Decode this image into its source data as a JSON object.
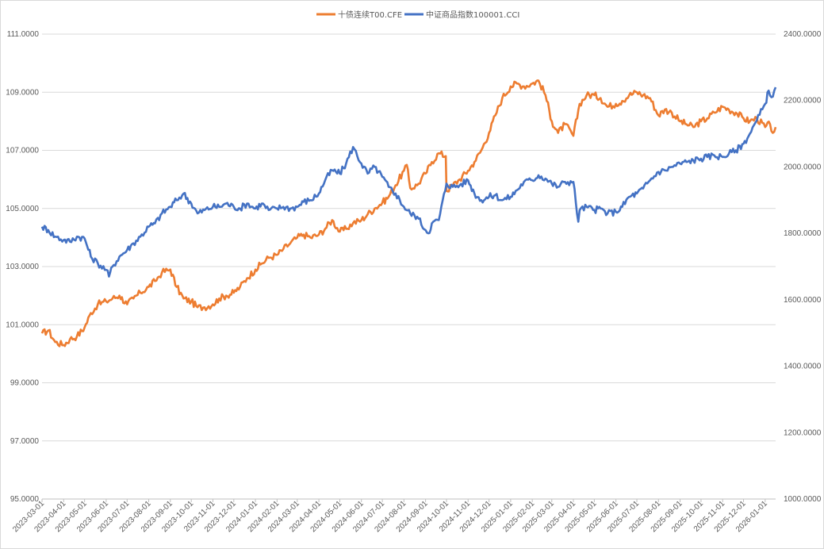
{
  "chart_data": {
    "type": "line",
    "title": "",
    "xlabel": "",
    "ylabel": "",
    "y2label": "",
    "grid": true,
    "legend_position": "top-center",
    "x_range": [
      "2023-03-01",
      "2026-01-16"
    ],
    "ylim": [
      95,
      111
    ],
    "y2lim": [
      1000,
      2400
    ],
    "x_ticks": [
      "2023-03-01",
      "2023-04-01",
      "2023-05-01",
      "2023-06-01",
      "2023-07-01",
      "2023-08-01",
      "2023-09-01",
      "2023-10-01",
      "2023-11-01",
      "2023-12-01",
      "2024-01-01",
      "2024-02-01",
      "2024-03-01",
      "2024-04-01",
      "2024-05-01",
      "2024-06-01",
      "2024-07-01",
      "2024-08-01",
      "2024-09-01",
      "2024-10-01",
      "2024-11-01",
      "2024-12-01",
      "2025-01-01",
      "2025-02-01",
      "2025-03-01",
      "2025-04-01",
      "2025-05-01",
      "2025-06-01",
      "2025-07-01",
      "2025-08-01",
      "2025-09-01",
      "2025-10-01",
      "2025-11-01",
      "2025-12-01",
      "2026-01-01"
    ],
    "y_ticks": [
      "95.0000",
      "97.0000",
      "99.0000",
      "101.0000",
      "103.0000",
      "105.0000",
      "107.0000",
      "109.0000",
      "111.0000"
    ],
    "y2_ticks": [
      "1000.0000",
      "1200.0000",
      "1400.0000",
      "1600.0000",
      "1800.0000",
      "2000.0000",
      "2200.0000",
      "2400.0000"
    ],
    "series": [
      {
        "name": "十债连续T00.CFE",
        "axis": "left",
        "color": "#ED7D31",
        "points": [
          [
            "2023-03-01",
            100.7
          ],
          [
            "2023-03-10",
            100.8
          ],
          [
            "2023-03-20",
            100.4
          ],
          [
            "2023-04-01",
            100.3
          ],
          [
            "2023-04-10",
            100.5
          ],
          [
            "2023-04-20",
            100.6
          ],
          [
            "2023-05-01",
            100.9
          ],
          [
            "2023-05-10",
            101.4
          ],
          [
            "2023-05-20",
            101.7
          ],
          [
            "2023-06-01",
            101.8
          ],
          [
            "2023-06-10",
            101.9
          ],
          [
            "2023-06-20",
            102.0
          ],
          [
            "2023-07-01",
            101.7
          ],
          [
            "2023-07-10",
            101.9
          ],
          [
            "2023-07-20",
            102.1
          ],
          [
            "2023-08-01",
            102.3
          ],
          [
            "2023-08-10",
            102.5
          ],
          [
            "2023-08-20",
            102.8
          ],
          [
            "2023-09-01",
            102.9
          ],
          [
            "2023-09-10",
            102.3
          ],
          [
            "2023-09-20",
            101.9
          ],
          [
            "2023-10-01",
            101.8
          ],
          [
            "2023-10-10",
            101.6
          ],
          [
            "2023-10-20",
            101.6
          ],
          [
            "2023-11-01",
            101.7
          ],
          [
            "2023-11-10",
            101.9
          ],
          [
            "2023-11-20",
            102.0
          ],
          [
            "2023-12-01",
            102.1
          ],
          [
            "2023-12-10",
            102.3
          ],
          [
            "2023-12-20",
            102.6
          ],
          [
            "2024-01-01",
            102.9
          ],
          [
            "2024-01-10",
            103.1
          ],
          [
            "2024-01-20",
            103.3
          ],
          [
            "2024-02-01",
            103.4
          ],
          [
            "2024-02-10",
            103.6
          ],
          [
            "2024-02-20",
            103.8
          ],
          [
            "2024-03-01",
            104.0
          ],
          [
            "2024-03-10",
            104.1
          ],
          [
            "2024-03-20",
            104.0
          ],
          [
            "2024-04-01",
            104.1
          ],
          [
            "2024-04-10",
            104.3
          ],
          [
            "2024-04-20",
            104.6
          ],
          [
            "2024-05-01",
            104.2
          ],
          [
            "2024-05-10",
            104.3
          ],
          [
            "2024-05-20",
            104.5
          ],
          [
            "2024-06-01",
            104.6
          ],
          [
            "2024-06-10",
            104.8
          ],
          [
            "2024-06-20",
            105.0
          ],
          [
            "2024-07-01",
            105.2
          ],
          [
            "2024-07-10",
            105.4
          ],
          [
            "2024-07-20",
            105.8
          ],
          [
            "2024-08-01",
            106.3
          ],
          [
            "2024-08-05",
            106.5
          ],
          [
            "2024-08-10",
            105.7
          ],
          [
            "2024-08-20",
            105.8
          ],
          [
            "2024-09-01",
            106.2
          ],
          [
            "2024-09-10",
            106.6
          ],
          [
            "2024-09-20",
            106.9
          ],
          [
            "2024-09-30",
            106.8
          ],
          [
            "2024-10-01",
            105.6
          ],
          [
            "2024-10-10",
            105.8
          ],
          [
            "2024-10-20",
            106.0
          ],
          [
            "2024-11-01",
            106.3
          ],
          [
            "2024-11-10",
            106.6
          ],
          [
            "2024-11-20",
            107.0
          ],
          [
            "2024-12-01",
            107.6
          ],
          [
            "2024-12-10",
            108.2
          ],
          [
            "2024-12-20",
            108.8
          ],
          [
            "2025-01-01",
            109.2
          ],
          [
            "2025-01-10",
            109.3
          ],
          [
            "2025-01-20",
            109.2
          ],
          [
            "2025-02-01",
            109.3
          ],
          [
            "2025-02-10",
            109.4
          ],
          [
            "2025-02-20",
            108.9
          ],
          [
            "2025-03-01",
            108.0
          ],
          [
            "2025-03-10",
            107.6
          ],
          [
            "2025-03-20",
            107.9
          ],
          [
            "2025-04-01",
            107.5
          ],
          [
            "2025-04-10",
            108.6
          ],
          [
            "2025-04-20",
            108.9
          ],
          [
            "2025-05-01",
            108.9
          ],
          [
            "2025-05-10",
            108.8
          ],
          [
            "2025-05-20",
            108.5
          ],
          [
            "2025-06-01",
            108.6
          ],
          [
            "2025-06-10",
            108.7
          ],
          [
            "2025-06-20",
            108.9
          ],
          [
            "2025-07-01",
            109.0
          ],
          [
            "2025-07-10",
            108.9
          ],
          [
            "2025-07-20",
            108.8
          ],
          [
            "2025-08-01",
            108.2
          ],
          [
            "2025-08-10",
            108.4
          ],
          [
            "2025-08-20",
            108.3
          ],
          [
            "2025-09-01",
            108.0
          ],
          [
            "2025-09-10",
            107.9
          ],
          [
            "2025-09-20",
            107.8
          ],
          [
            "2025-10-01",
            108.0
          ],
          [
            "2025-10-10",
            108.1
          ],
          [
            "2025-10-20",
            108.3
          ],
          [
            "2025-11-01",
            108.5
          ],
          [
            "2025-11-10",
            108.4
          ],
          [
            "2025-11-20",
            108.3
          ],
          [
            "2025-12-01",
            108.1
          ],
          [
            "2025-12-10",
            108.0
          ],
          [
            "2025-12-20",
            108.1
          ],
          [
            "2026-01-01",
            107.8
          ],
          [
            "2026-01-08",
            107.9
          ],
          [
            "2026-01-12",
            107.6
          ],
          [
            "2026-01-16",
            107.8
          ]
        ]
      },
      {
        "name": "中证商品指数100001.CCI",
        "axis": "right",
        "color": "#4472C4",
        "points": [
          [
            "2023-03-01",
            1820
          ],
          [
            "2023-03-10",
            1810
          ],
          [
            "2023-03-20",
            1790
          ],
          [
            "2023-04-01",
            1780
          ],
          [
            "2023-04-10",
            1775
          ],
          [
            "2023-04-20",
            1790
          ],
          [
            "2023-05-01",
            1785
          ],
          [
            "2023-05-10",
            1730
          ],
          [
            "2023-05-20",
            1710
          ],
          [
            "2023-06-01",
            1690
          ],
          [
            "2023-06-05",
            1670
          ],
          [
            "2023-06-10",
            1700
          ],
          [
            "2023-06-20",
            1730
          ],
          [
            "2023-07-01",
            1750
          ],
          [
            "2023-07-10",
            1770
          ],
          [
            "2023-07-20",
            1790
          ],
          [
            "2023-08-01",
            1820
          ],
          [
            "2023-08-10",
            1830
          ],
          [
            "2023-08-20",
            1860
          ],
          [
            "2023-09-01",
            1880
          ],
          [
            "2023-09-10",
            1900
          ],
          [
            "2023-09-20",
            1920
          ],
          [
            "2023-10-01",
            1890
          ],
          [
            "2023-10-10",
            1860
          ],
          [
            "2023-10-20",
            1870
          ],
          [
            "2023-11-01",
            1880
          ],
          [
            "2023-11-10",
            1880
          ],
          [
            "2023-11-20",
            1890
          ],
          [
            "2023-12-01",
            1880
          ],
          [
            "2023-12-10",
            1875
          ],
          [
            "2023-12-20",
            1890
          ],
          [
            "2024-01-01",
            1875
          ],
          [
            "2024-01-10",
            1890
          ],
          [
            "2024-01-20",
            1870
          ],
          [
            "2024-02-01",
            1875
          ],
          [
            "2024-02-10",
            1880
          ],
          [
            "2024-02-20",
            1875
          ],
          [
            "2024-03-01",
            1880
          ],
          [
            "2024-03-10",
            1895
          ],
          [
            "2024-03-20",
            1900
          ],
          [
            "2024-04-01",
            1920
          ],
          [
            "2024-04-10",
            1960
          ],
          [
            "2024-04-20",
            1990
          ],
          [
            "2024-05-01",
            1980
          ],
          [
            "2024-05-10",
            2010
          ],
          [
            "2024-05-20",
            2060
          ],
          [
            "2024-06-01",
            2010
          ],
          [
            "2024-06-10",
            1980
          ],
          [
            "2024-06-20",
            2000
          ],
          [
            "2024-07-01",
            1970
          ],
          [
            "2024-07-10",
            1940
          ],
          [
            "2024-07-20",
            1920
          ],
          [
            "2024-08-01",
            1880
          ],
          [
            "2024-08-10",
            1860
          ],
          [
            "2024-08-20",
            1850
          ],
          [
            "2024-09-01",
            1810
          ],
          [
            "2024-09-05",
            1800
          ],
          [
            "2024-09-10",
            1830
          ],
          [
            "2024-09-20",
            1840
          ],
          [
            "2024-10-01",
            1950
          ],
          [
            "2024-10-10",
            1940
          ],
          [
            "2024-10-20",
            1945
          ],
          [
            "2024-11-01",
            1960
          ],
          [
            "2024-11-10",
            1920
          ],
          [
            "2024-11-20",
            1900
          ],
          [
            "2024-12-01",
            1910
          ],
          [
            "2024-12-10",
            1915
          ],
          [
            "2024-12-20",
            1900
          ],
          [
            "2025-01-01",
            1910
          ],
          [
            "2025-01-10",
            1930
          ],
          [
            "2025-01-20",
            1955
          ],
          [
            "2025-02-01",
            1960
          ],
          [
            "2025-02-10",
            1975
          ],
          [
            "2025-02-20",
            1965
          ],
          [
            "2025-03-01",
            1950
          ],
          [
            "2025-03-10",
            1940
          ],
          [
            "2025-03-20",
            1955
          ],
          [
            "2025-04-01",
            1955
          ],
          [
            "2025-04-08",
            1835
          ],
          [
            "2025-04-10",
            1870
          ],
          [
            "2025-04-20",
            1880
          ],
          [
            "2025-05-01",
            1870
          ],
          [
            "2025-05-10",
            1875
          ],
          [
            "2025-05-20",
            1860
          ],
          [
            "2025-06-01",
            1865
          ],
          [
            "2025-06-10",
            1880
          ],
          [
            "2025-06-20",
            1910
          ],
          [
            "2025-07-01",
            1920
          ],
          [
            "2025-07-10",
            1935
          ],
          [
            "2025-07-20",
            1960
          ],
          [
            "2025-08-01",
            1985
          ],
          [
            "2025-08-10",
            1990
          ],
          [
            "2025-08-20",
            2000
          ],
          [
            "2025-09-01",
            2010
          ],
          [
            "2025-09-10",
            2015
          ],
          [
            "2025-09-20",
            2020
          ],
          [
            "2025-10-01",
            2025
          ],
          [
            "2025-10-10",
            2030
          ],
          [
            "2025-10-20",
            2035
          ],
          [
            "2025-11-01",
            2030
          ],
          [
            "2025-11-10",
            2040
          ],
          [
            "2025-11-20",
            2050
          ],
          [
            "2025-12-01",
            2070
          ],
          [
            "2025-12-10",
            2100
          ],
          [
            "2025-12-20",
            2140
          ],
          [
            "2026-01-01",
            2190
          ],
          [
            "2026-01-06",
            2230
          ],
          [
            "2026-01-10",
            2210
          ],
          [
            "2026-01-16",
            2240
          ]
        ]
      }
    ]
  }
}
